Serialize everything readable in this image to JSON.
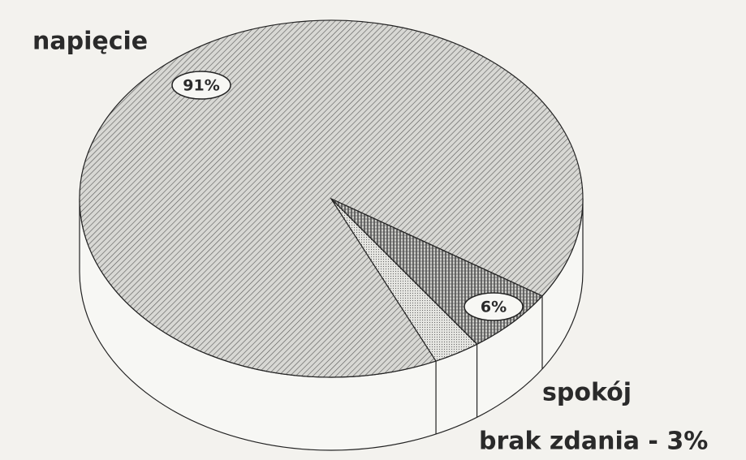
{
  "chart_data": {
    "type": "pie",
    "categories": [
      "napięcie",
      "spokój",
      "brak zdania - 3%"
    ],
    "values": [
      91,
      6,
      3
    ],
    "value_labels": [
      "91%",
      "6%",
      null
    ]
  }
}
